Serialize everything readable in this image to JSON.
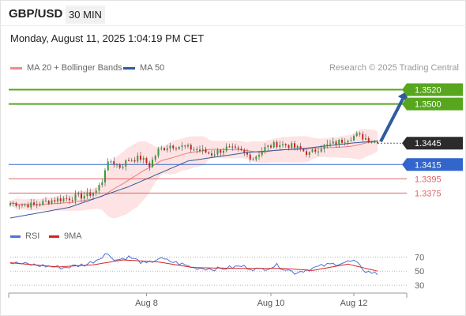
{
  "header": {
    "symbol": "GBP/USD",
    "timeframe": "30 MIN",
    "datetime": "Monday, August 11, 2025 1:04:19 PM CET"
  },
  "legend": {
    "bb_label": "MA 20 + Bollinger Bands",
    "ma50_label": "MA 50",
    "credit": "Research © 2025 Trading Central"
  },
  "rsi_legend": {
    "rsi_label": "RSI",
    "ma_label": "9MA"
  },
  "colors": {
    "up_candle": "#3a9a3a",
    "down_candle": "#cc2222",
    "ma20": "#e88080",
    "bollinger_fill": "#fde3e3",
    "ma50": "#2f5c9e",
    "target_line": "#58a61e",
    "pivot_line": "#3366cc",
    "support_line": "#e06666",
    "last_price_box": "#2b2b2b",
    "rsi": "#4a74d6",
    "rsi_ma": "#d62222",
    "arrow": "#2e5c9e"
  },
  "chart_data": [
    {
      "type": "candlestick",
      "title": "",
      "x_ticks": [
        "Aug 8",
        "Aug 10",
        "Aug 12"
      ],
      "ylim": [
        1.333,
        1.3535
      ],
      "last_price": 1.3445,
      "levels": [
        {
          "value": 1.352,
          "label": "1.3520",
          "kind": "target"
        },
        {
          "value": 1.35,
          "label": "1.3500",
          "kind": "target"
        },
        {
          "value": 1.3445,
          "label": "1.3445",
          "kind": "last"
        },
        {
          "value": 1.3415,
          "label": "1.3415",
          "kind": "pivot"
        },
        {
          "value": 1.3395,
          "label": "1.3395",
          "kind": "support"
        },
        {
          "value": 1.3375,
          "label": "1.3375",
          "kind": "support"
        }
      ],
      "close_path": [
        {
          "i": 0,
          "v": 1.3361
        },
        {
          "i": 8,
          "v": 1.3358
        },
        {
          "i": 14,
          "v": 1.3365
        },
        {
          "i": 20,
          "v": 1.3368
        },
        {
          "i": 26,
          "v": 1.3372
        },
        {
          "i": 29,
          "v": 1.3378
        },
        {
          "i": 31,
          "v": 1.3392
        },
        {
          "i": 32,
          "v": 1.341
        },
        {
          "i": 34,
          "v": 1.342
        },
        {
          "i": 37,
          "v": 1.3412
        },
        {
          "i": 40,
          "v": 1.3422
        },
        {
          "i": 44,
          "v": 1.3424
        },
        {
          "i": 47,
          "v": 1.3414
        },
        {
          "i": 50,
          "v": 1.3435
        },
        {
          "i": 54,
          "v": 1.3442
        },
        {
          "i": 58,
          "v": 1.344
        },
        {
          "i": 63,
          "v": 1.3436
        },
        {
          "i": 68,
          "v": 1.343
        },
        {
          "i": 73,
          "v": 1.3438
        },
        {
          "i": 78,
          "v": 1.3433
        },
        {
          "i": 82,
          "v": 1.3424
        },
        {
          "i": 86,
          "v": 1.3438
        },
        {
          "i": 90,
          "v": 1.3444
        },
        {
          "i": 94,
          "v": 1.3442
        },
        {
          "i": 98,
          "v": 1.3436
        },
        {
          "i": 101,
          "v": 1.343
        },
        {
          "i": 105,
          "v": 1.344
        },
        {
          "i": 110,
          "v": 1.3445
        },
        {
          "i": 114,
          "v": 1.3452
        },
        {
          "i": 117,
          "v": 1.3456
        },
        {
          "i": 120,
          "v": 1.3452
        },
        {
          "i": 124,
          "v": 1.3445
        }
      ],
      "ma50_path": [
        {
          "i": 0,
          "v": 1.334
        },
        {
          "i": 20,
          "v": 1.3355
        },
        {
          "i": 40,
          "v": 1.3384
        },
        {
          "i": 60,
          "v": 1.342
        },
        {
          "i": 80,
          "v": 1.3432
        },
        {
          "i": 100,
          "v": 1.3438
        },
        {
          "i": 115,
          "v": 1.3445
        },
        {
          "i": 124,
          "v": 1.3448
        }
      ],
      "candle_count": 125
    },
    {
      "type": "line",
      "title": "",
      "y_ticks": [
        70,
        50,
        30
      ],
      "ylim": [
        20,
        85
      ],
      "rsi_path": [
        {
          "i": 0,
          "v": 62
        },
        {
          "i": 10,
          "v": 58
        },
        {
          "i": 18,
          "v": 55
        },
        {
          "i": 26,
          "v": 60
        },
        {
          "i": 30,
          "v": 68
        },
        {
          "i": 32,
          "v": 75
        },
        {
          "i": 36,
          "v": 66
        },
        {
          "i": 40,
          "v": 70
        },
        {
          "i": 46,
          "v": 60
        },
        {
          "i": 50,
          "v": 68
        },
        {
          "i": 56,
          "v": 62
        },
        {
          "i": 62,
          "v": 55
        },
        {
          "i": 70,
          "v": 53
        },
        {
          "i": 78,
          "v": 57
        },
        {
          "i": 84,
          "v": 52
        },
        {
          "i": 90,
          "v": 58
        },
        {
          "i": 96,
          "v": 48
        },
        {
          "i": 100,
          "v": 52
        },
        {
          "i": 106,
          "v": 58
        },
        {
          "i": 112,
          "v": 62
        },
        {
          "i": 116,
          "v": 64
        },
        {
          "i": 120,
          "v": 50
        },
        {
          "i": 124,
          "v": 46
        }
      ],
      "ma_path": [
        {
          "i": 0,
          "v": 62
        },
        {
          "i": 16,
          "v": 56
        },
        {
          "i": 28,
          "v": 59
        },
        {
          "i": 38,
          "v": 66
        },
        {
          "i": 50,
          "v": 63
        },
        {
          "i": 62,
          "v": 55
        },
        {
          "i": 76,
          "v": 54
        },
        {
          "i": 92,
          "v": 54
        },
        {
          "i": 102,
          "v": 51
        },
        {
          "i": 114,
          "v": 60
        },
        {
          "i": 124,
          "v": 50
        }
      ]
    }
  ]
}
